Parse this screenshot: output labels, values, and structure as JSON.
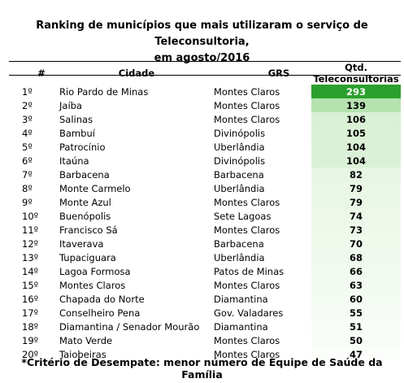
{
  "title_line1": "Ranking de municípios que mais utilizaram o serviço de Teleconsultoria,",
  "title_line2": "em agosto/2016",
  "headers": {
    "num": "#",
    "city": "Cidade",
    "grs": "GRS",
    "qtd": "Qtd. Teleconsultorias"
  },
  "rows": [
    {
      "num": "1º",
      "city": "Rio Pardo de Minas",
      "grs": "Montes Claros",
      "qtd": "293",
      "shade": "#2ca02c",
      "fg": "#ffffff"
    },
    {
      "num": "2º",
      "city": "Jaíba",
      "grs": "Montes Claros",
      "qtd": "139",
      "shade": "#b6e2b0",
      "fg": "#000000"
    },
    {
      "num": "3º",
      "city": "Salinas",
      "grs": "Montes Claros",
      "qtd": "106",
      "shade": "#d8f0d4",
      "fg": "#000000"
    },
    {
      "num": "4º",
      "city": "Bambuí",
      "grs": "Divinópolis",
      "qtd": "105",
      "shade": "#daf1d6",
      "fg": "#000000"
    },
    {
      "num": "5º",
      "city": "Patrocínio",
      "grs": "Uberlândia",
      "qtd": "104",
      "shade": "#dbf1d7",
      "fg": "#000000"
    },
    {
      "num": "6º",
      "city": "Itaúna",
      "grs": "Divinópolis",
      "qtd": "104",
      "shade": "#dbf1d7",
      "fg": "#000000"
    },
    {
      "num": "7º",
      "city": "Barbacena",
      "grs": "Barbacena",
      "qtd": "82",
      "shade": "#e8f6e5",
      "fg": "#000000"
    },
    {
      "num": "8º",
      "city": "Monte Carmelo",
      "grs": "Uberlândia",
      "qtd": "79",
      "shade": "#eaf7e7",
      "fg": "#000000"
    },
    {
      "num": "9º",
      "city": "Monte Azul",
      "grs": "Montes Claros",
      "qtd": "79",
      "shade": "#eaf7e7",
      "fg": "#000000"
    },
    {
      "num": "10º",
      "city": "Buenópolis",
      "grs": "Sete Lagoas",
      "qtd": "74",
      "shade": "#edf8ea",
      "fg": "#000000"
    },
    {
      "num": "11º",
      "city": "Francisco Sá",
      "grs": "Montes Claros",
      "qtd": "73",
      "shade": "#eef8eb",
      "fg": "#000000"
    },
    {
      "num": "12º",
      "city": "Itaverava",
      "grs": "Barbacena",
      "qtd": "70",
      "shade": "#eff9ec",
      "fg": "#000000"
    },
    {
      "num": "13º",
      "city": "Tupaciguara",
      "grs": "Uberlândia",
      "qtd": "68",
      "shade": "#f0f9ee",
      "fg": "#000000"
    },
    {
      "num": "14º",
      "city": "Lagoa Formosa",
      "grs": "Patos de Minas",
      "qtd": "66",
      "shade": "#f1faef",
      "fg": "#000000"
    },
    {
      "num": "15º",
      "city": "Montes Claros",
      "grs": "Montes Claros",
      "qtd": "63",
      "shade": "#f3faf1",
      "fg": "#000000"
    },
    {
      "num": "16º",
      "city": "Chapada do Norte",
      "grs": "Diamantina",
      "qtd": "60",
      "shade": "#f4fbf2",
      "fg": "#000000"
    },
    {
      "num": "17º",
      "city": "Conselheiro Pena",
      "grs": "Gov. Valadares",
      "qtd": "55",
      "shade": "#f6fcf5",
      "fg": "#000000"
    },
    {
      "num": "18º",
      "city": "Diamantina / Senador Mourão",
      "grs": "Diamantina",
      "qtd": "51",
      "shade": "#f8fdf7",
      "fg": "#000000"
    },
    {
      "num": "19º",
      "city": "Mato Verde",
      "grs": "Montes Claros",
      "qtd": "50",
      "shade": "#f9fdf8",
      "fg": "#000000"
    },
    {
      "num": "20º",
      "city": "Taiobeiras",
      "grs": "Montes Claros",
      "qtd": "47",
      "shade": "#fbfefa",
      "fg": "#000000"
    }
  ],
  "footnote": "*Critério de Desempate: menor número de Equipe de Saúde da Família"
}
